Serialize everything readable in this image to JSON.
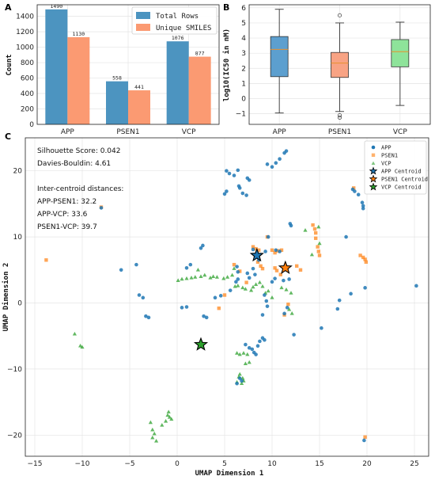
{
  "panel_labels": {
    "a": "A",
    "b": "B",
    "c": "C"
  },
  "colors": {
    "bar_total": "#4c94c0",
    "bar_unique": "#fb9a72",
    "box_app": "#5c9fcf",
    "box_psen1": "#f8a384",
    "box_vcp": "#8ee39a",
    "app": "#1f77b4",
    "psen1": "#ff7f0e",
    "vcp": "#2ca02c"
  },
  "chart_data": [
    {
      "type": "bar",
      "panel": "A",
      "categories": [
        "APP",
        "PSEN1",
        "VCP"
      ],
      "series": [
        {
          "name": "Total Rows",
          "values": [
            1490,
            558,
            1076
          ]
        },
        {
          "name": "Unique SMILES",
          "values": [
            1130,
            441,
            877
          ]
        }
      ],
      "data_labels": [
        [
          "1490",
          "558",
          "1076"
        ],
        [
          "1130",
          "441",
          "877"
        ]
      ],
      "ylabel": "Count",
      "ylim": [
        0,
        1550
      ],
      "yticks": [
        0,
        200,
        400,
        600,
        800,
        1000,
        1200,
        1400
      ],
      "grid": true,
      "legend": "top-right"
    },
    {
      "type": "box",
      "panel": "B",
      "categories": [
        "APP",
        "PSEN1",
        "VCP"
      ],
      "boxes": [
        {
          "min": -0.95,
          "q1": 1.45,
          "median": 3.25,
          "q3": 4.1,
          "max": 5.9,
          "outliers": []
        },
        {
          "min": -0.85,
          "q1": 1.4,
          "median": 2.35,
          "q3": 3.05,
          "max": 5.0,
          "outliers": [
            5.5,
            -1.1,
            -1.25
          ]
        },
        {
          "min": -0.45,
          "q1": 2.1,
          "median": 3.1,
          "q3": 3.9,
          "max": 5.05,
          "outliers": []
        }
      ],
      "ylabel": "log10(IC50 in nM)",
      "ylim": [
        -1.7,
        6.2
      ],
      "yticks": [
        -1,
        0,
        1,
        2,
        3,
        4,
        5,
        6
      ],
      "grid": true
    },
    {
      "type": "scatter",
      "panel": "C",
      "xlabel": "UMAP Dimension 1",
      "ylabel": "UMAP Dimension 2",
      "xlim": [
        -16,
        26.5
      ],
      "ylim": [
        -23.2,
        25
      ],
      "xticks": [
        -15,
        -10,
        -5,
        0,
        5,
        10,
        15,
        20,
        25
      ],
      "yticks": [
        -20,
        -10,
        0,
        10,
        20
      ],
      "grid": true,
      "legend": "top-right",
      "annotations": [
        "Silhouette Score: 0.042",
        "Davies-Bouldin: 4.61",
        "Inter-centroid distances:",
        "APP-PSEN1: 32.2",
        "APP-VCP: 33.6",
        "PSEN1-VCP: 39.7"
      ],
      "series": [
        {
          "name": "APP",
          "marker": "circle",
          "points": [
            [
              5.2,
              20.0
            ],
            [
              5.5,
              19.6
            ],
            [
              6.0,
              19.3
            ],
            [
              6.4,
              20.1
            ],
            [
              7.4,
              18.9
            ],
            [
              7.6,
              18.6
            ],
            [
              6.5,
              17.7
            ],
            [
              6.6,
              17.4
            ],
            [
              5.0,
              16.5
            ],
            [
              5.2,
              16.9
            ],
            [
              6.9,
              16.6
            ],
            [
              7.3,
              16.3
            ],
            [
              9.5,
              21.0
            ],
            [
              10.0,
              20.6
            ],
            [
              10.4,
              21.2
            ],
            [
              10.8,
              21.8
            ],
            [
              11.3,
              22.7
            ],
            [
              11.5,
              23.0
            ],
            [
              18.5,
              17.2
            ],
            [
              18.7,
              16.9
            ],
            [
              19.1,
              16.4
            ],
            [
              19.5,
              15.2
            ],
            [
              19.6,
              14.7
            ],
            [
              19.6,
              14.3
            ],
            [
              12.0,
              11.7
            ],
            [
              11.9,
              12.0
            ],
            [
              2.5,
              8.3
            ],
            [
              2.7,
              8.7
            ],
            [
              1.0,
              5.3
            ],
            [
              1.4,
              5.8
            ],
            [
              -4.3,
              5.8
            ],
            [
              -5.9,
              5.0
            ],
            [
              -8.0,
              14.4
            ],
            [
              -4.0,
              1.2
            ],
            [
              -3.6,
              0.8
            ],
            [
              -3.3,
              -2.0
            ],
            [
              -3.0,
              -2.2
            ],
            [
              2.8,
              -2.0
            ],
            [
              3.1,
              -2.2
            ],
            [
              0.5,
              -0.7
            ],
            [
              1.0,
              -0.6
            ],
            [
              4.0,
              0.8
            ],
            [
              4.6,
              1.1
            ],
            [
              5.6,
              1.9
            ],
            [
              6.2,
              3.2
            ],
            [
              6.4,
              3.6
            ],
            [
              6.3,
              5.5
            ],
            [
              6.4,
              4.7
            ],
            [
              7.4,
              4.5
            ],
            [
              7.6,
              3.8
            ],
            [
              8.2,
              4.3
            ],
            [
              8.0,
              5.2
            ],
            [
              8.6,
              6.5
            ],
            [
              8.4,
              7.4
            ],
            [
              8.0,
              8.1
            ],
            [
              9.6,
              10.0
            ],
            [
              9.3,
              7.8
            ],
            [
              10.3,
              3.7
            ],
            [
              10.0,
              3.2
            ],
            [
              9.2,
              1.2
            ],
            [
              9.4,
              0.3
            ],
            [
              9.5,
              -0.5
            ],
            [
              9.0,
              -1.8
            ],
            [
              11.3,
              -1.6
            ],
            [
              11.6,
              -0.7
            ],
            [
              12.3,
              -4.8
            ],
            [
              15.2,
              -3.8
            ],
            [
              16.9,
              -0.9
            ],
            [
              17.1,
              0.4
            ],
            [
              18.3,
              1.4
            ],
            [
              19.8,
              2.3
            ],
            [
              19.7,
              -20.8
            ],
            [
              25.2,
              2.6
            ],
            [
              17.8,
              10.0
            ],
            [
              11.2,
              3.4
            ],
            [
              11.8,
              3.6
            ],
            [
              7.2,
              -6.3
            ],
            [
              7.6,
              -6.8
            ],
            [
              7.9,
              -7.0
            ],
            [
              8.1,
              -7.5
            ],
            [
              8.3,
              -7.8
            ],
            [
              8.5,
              -6.5
            ],
            [
              8.7,
              -5.8
            ],
            [
              9.0,
              -5.3
            ],
            [
              9.2,
              -5.6
            ],
            [
              6.6,
              -11.4
            ],
            [
              6.8,
              -11.8
            ],
            [
              6.3,
              -12.2
            ],
            [
              10.4,
              8.0
            ],
            [
              10.8,
              7.8
            ]
          ]
        },
        {
          "name": "PSEN1",
          "marker": "square",
          "points": [
            [
              -13.8,
              6.5
            ],
            [
              -8.0,
              14.5
            ],
            [
              9.5,
              10.0
            ],
            [
              8.0,
              8.5
            ],
            [
              8.3,
              8.2
            ],
            [
              8.6,
              8.0
            ],
            [
              10.0,
              8.0
            ],
            [
              10.3,
              7.6
            ],
            [
              10.6,
              7.9
            ],
            [
              11.0,
              8.0
            ],
            [
              14.3,
              11.8
            ],
            [
              14.5,
              11.2
            ],
            [
              14.6,
              10.6
            ],
            [
              14.6,
              9.8
            ],
            [
              14.8,
              8.5
            ],
            [
              14.9,
              7.8
            ],
            [
              15.0,
              7.2
            ],
            [
              18.6,
              17.4
            ],
            [
              19.3,
              7.2
            ],
            [
              19.6,
              6.9
            ],
            [
              19.8,
              6.6
            ],
            [
              19.9,
              6.2
            ],
            [
              6.0,
              5.8
            ],
            [
              6.6,
              4.8
            ],
            [
              7.3,
              3.1
            ],
            [
              8.5,
              6.2
            ],
            [
              8.8,
              5.6
            ],
            [
              9.0,
              5.2
            ],
            [
              10.3,
              5.3
            ],
            [
              10.5,
              4.9
            ],
            [
              10.9,
              4.3
            ],
            [
              12.6,
              5.6
            ],
            [
              13.0,
              5.0
            ],
            [
              4.4,
              -0.8
            ],
            [
              5.0,
              1.2
            ],
            [
              11.3,
              -1.8
            ],
            [
              11.7,
              -0.2
            ],
            [
              19.8,
              -20.3
            ]
          ]
        },
        {
          "name": "VCP",
          "marker": "triangle",
          "points": [
            [
              -10.8,
              -4.7
            ],
            [
              -10.2,
              -6.5
            ],
            [
              -10.0,
              -6.7
            ],
            [
              -1.0,
              -17.0
            ],
            [
              -0.8,
              -17.3
            ],
            [
              -0.6,
              -17.6
            ],
            [
              -1.2,
              -17.9
            ],
            [
              -1.6,
              -18.5
            ],
            [
              -0.9,
              -16.5
            ],
            [
              -2.8,
              -18.1
            ],
            [
              -2.6,
              -19.2
            ],
            [
              -2.4,
              -19.8
            ],
            [
              -2.6,
              -20.4
            ],
            [
              -2.2,
              -20.9
            ],
            [
              0.1,
              3.4
            ],
            [
              0.5,
              3.6
            ],
            [
              1.0,
              3.7
            ],
            [
              1.5,
              3.8
            ],
            [
              1.9,
              3.9
            ],
            [
              2.5,
              4.0
            ],
            [
              2.9,
              4.2
            ],
            [
              3.5,
              3.8
            ],
            [
              3.8,
              4.0
            ],
            [
              4.2,
              3.9
            ],
            [
              4.9,
              3.7
            ],
            [
              5.3,
              3.9
            ],
            [
              5.8,
              4.2
            ],
            [
              6.1,
              2.5
            ],
            [
              6.4,
              2.6
            ],
            [
              6.9,
              2.3
            ],
            [
              7.2,
              2.1
            ],
            [
              7.8,
              1.9
            ],
            [
              8.0,
              2.4
            ],
            [
              8.3,
              2.8
            ],
            [
              8.7,
              3.1
            ],
            [
              9.0,
              2.5
            ],
            [
              9.3,
              1.5
            ],
            [
              9.6,
              1.8
            ],
            [
              10.0,
              0.8
            ],
            [
              11.0,
              2.3
            ],
            [
              11.5,
              2.0
            ],
            [
              12.0,
              1.5
            ],
            [
              11.8,
              -1.0
            ],
            [
              12.1,
              -1.6
            ],
            [
              6.3,
              -7.6
            ],
            [
              6.6,
              -7.8
            ],
            [
              7.0,
              -7.6
            ],
            [
              7.4,
              -7.8
            ],
            [
              7.6,
              -9.0
            ],
            [
              7.2,
              -9.2
            ],
            [
              6.6,
              -10.8
            ],
            [
              6.5,
              -11.2
            ],
            [
              6.9,
              -11.4
            ],
            [
              7.0,
              -11.8
            ],
            [
              6.8,
              -12.2
            ],
            [
              6.3,
              -12.0
            ],
            [
              13.5,
              11.0
            ],
            [
              14.2,
              7.3
            ],
            [
              14.9,
              11.5
            ],
            [
              15.0,
              9.0
            ],
            [
              6.0,
              5.2
            ],
            [
              2.2,
              5.0
            ]
          ]
        },
        {
          "name": "APP Centroid",
          "marker": "star",
          "points": [
            [
              8.4,
              7.2
            ]
          ]
        },
        {
          "name": "PSEN1 Centroid",
          "marker": "star",
          "points": [
            [
              11.4,
              5.3
            ]
          ]
        },
        {
          "name": "VCP Centroid",
          "marker": "star",
          "points": [
            [
              2.5,
              -6.3
            ]
          ]
        }
      ]
    }
  ]
}
